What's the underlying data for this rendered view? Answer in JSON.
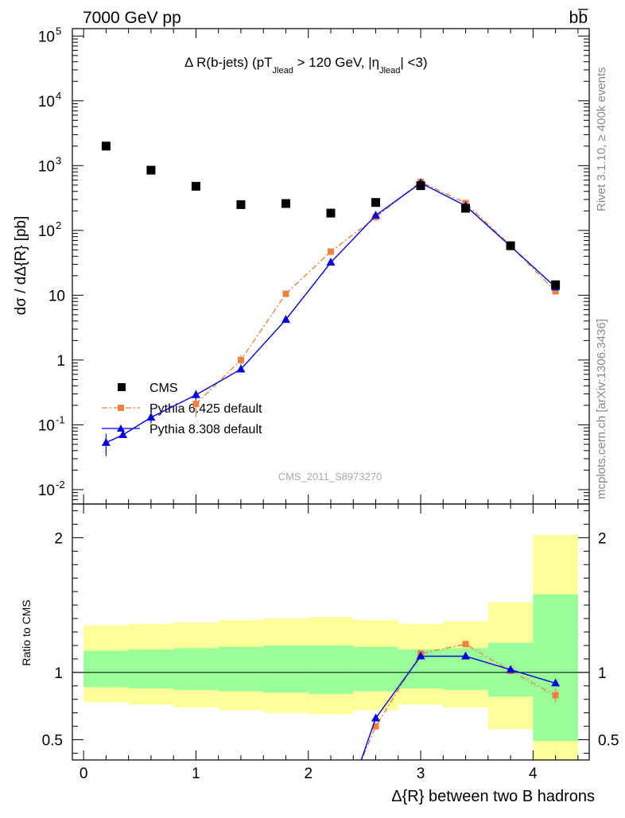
{
  "header": {
    "energy_label": "7000 GeV pp",
    "process_label": "bb̅",
    "side_label_top": "Rivet 3.1.10, ≥ 400k events",
    "side_label_bottom": "mcplots.cern.ch [arXiv:1306.3436]",
    "watermark": "CMS_2011_S8973270"
  },
  "chart_data": [
    {
      "type": "scatter",
      "panel": "main",
      "title": "Δ R(b-jets) (pT_Jlead > 120 GeV, |η_Jlead| <3)",
      "title_parts": {
        "a": "Δ R(b-jets) (pT",
        "sub1": "Jlead",
        "b": " >  120 GeV, |η",
        "sub2": "Jlead",
        "c": "| <3)"
      },
      "ylabel": "dσ / dΔ{R} [pb]",
      "yscale": "log",
      "ylim": [
        0.006,
        130000
      ],
      "xlim": [
        -0.1,
        4.5
      ],
      "y_ticks": [
        {
          "value": 0.01,
          "label": "10",
          "exp": "-2"
        },
        {
          "value": 0.1,
          "label": "10",
          "exp": "-1"
        },
        {
          "value": 1,
          "label": "1",
          "exp": ""
        },
        {
          "value": 10,
          "label": "10",
          "exp": ""
        },
        {
          "value": 100,
          "label": "10",
          "exp": "2"
        },
        {
          "value": 1000,
          "label": "10",
          "exp": "3"
        },
        {
          "value": 10000,
          "label": "10",
          "exp": "4"
        },
        {
          "value": 100000,
          "label": "10",
          "exp": "5"
        }
      ],
      "legend_position": "lower-left",
      "series": [
        {
          "name": "CMS",
          "color": "#000000",
          "style": "marker-square",
          "x": [
            0.2,
            0.6,
            1.0,
            1.4,
            1.8,
            2.2,
            2.6,
            3.0,
            3.4,
            3.8,
            4.2
          ],
          "y": [
            2000,
            850,
            480,
            250,
            260,
            185,
            270,
            490,
            220,
            58,
            14.5
          ]
        },
        {
          "name": "Pythia 6.425 default",
          "color": "#f08040",
          "style": "dashdot-square",
          "x": [
            0.2,
            0.6,
            1.0,
            1.4,
            1.8,
            2.2,
            2.6,
            3.0,
            3.4,
            3.8,
            4.2
          ],
          "y": [
            null,
            null,
            0.21,
            1.0,
            10.5,
            47,
            160,
            560,
            265,
            58,
            11.5
          ],
          "err": [
            null,
            null,
            0.08,
            0.2,
            1,
            3,
            8,
            20,
            10,
            3,
            1
          ]
        },
        {
          "name": "Pythia 8.308 default",
          "color": "#0000e0",
          "style": "solid-triangle",
          "x": [
            0.2,
            0.35,
            0.6,
            1.0,
            1.4,
            1.8,
            2.2,
            2.6,
            3.0,
            3.4,
            3.8,
            4.2
          ],
          "y": [
            0.053,
            0.07,
            0.13,
            0.29,
            0.72,
            4.2,
            32,
            170,
            540,
            240,
            57,
            13.3
          ],
          "err": [
            0.02,
            0.005,
            0.025,
            0.05,
            0.08,
            0.3,
            2,
            8,
            20,
            10,
            3,
            1
          ]
        }
      ]
    },
    {
      "type": "line",
      "panel": "ratio",
      "ylabel": "Ratio to CMS",
      "xlabel": "Δ{R} between two B hadrons",
      "ylim": [
        0.35,
        2.25
      ],
      "xlim": [
        -0.1,
        4.5
      ],
      "x_ticks": [
        0,
        1,
        2,
        3,
        4
      ],
      "y_ticks": [
        0.5,
        1,
        2
      ],
      "reference_line": 1,
      "bands": {
        "edges": [
          0,
          0.4,
          0.8,
          1.2,
          1.6,
          2.0,
          2.4,
          2.8,
          3.2,
          3.6,
          4.0,
          4.4
        ],
        "yellow_lo": [
          0.78,
          0.76,
          0.74,
          0.72,
          0.7,
          0.69,
          0.72,
          0.76,
          0.74,
          0.58,
          0.35
        ],
        "yellow_hi": [
          1.35,
          1.36,
          1.37,
          1.39,
          1.4,
          1.41,
          1.39,
          1.36,
          1.38,
          1.52,
          2.02
        ],
        "green_lo": [
          0.89,
          0.88,
          0.87,
          0.86,
          0.85,
          0.84,
          0.86,
          0.88,
          0.87,
          0.82,
          0.49
        ],
        "green_hi": [
          1.16,
          1.17,
          1.18,
          1.19,
          1.2,
          1.2,
          1.19,
          1.17,
          1.18,
          1.22,
          1.58
        ]
      },
      "series": [
        {
          "name": "Pythia 6.425 default",
          "color": "#f08040",
          "style": "dashdot-square",
          "x": [
            2.45,
            2.6,
            3.0,
            3.4,
            3.8,
            4.2
          ],
          "y": [
            0.3,
            0.6,
            1.14,
            1.21,
            1.01,
            0.83
          ],
          "err": [
            null,
            0.01,
            0.02,
            0.02,
            0.02,
            0.05
          ]
        },
        {
          "name": "Pythia 8.308 default",
          "color": "#0000e0",
          "style": "solid-triangle",
          "x": [
            2.45,
            2.6,
            3.0,
            3.4,
            3.8,
            4.2
          ],
          "y": [
            0.3,
            0.66,
            1.12,
            1.12,
            1.02,
            0.92
          ]
        }
      ]
    }
  ]
}
